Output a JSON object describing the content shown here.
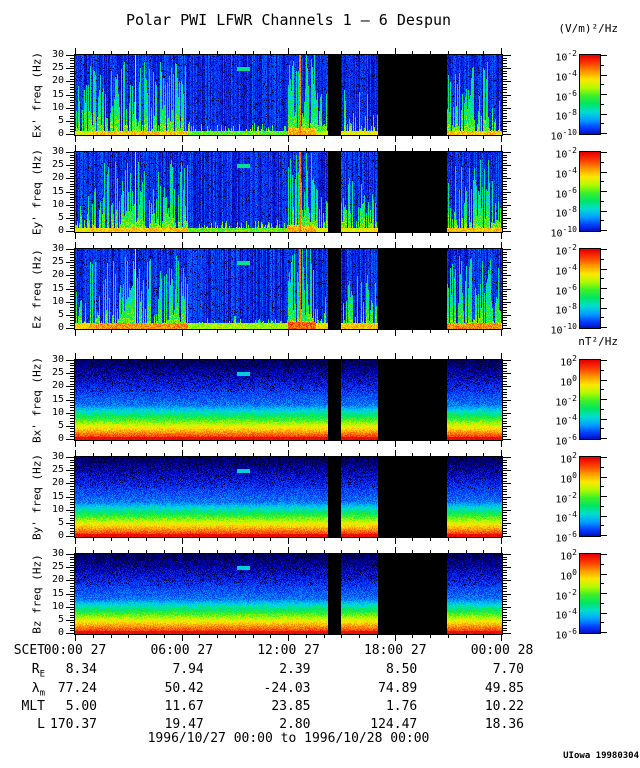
{
  "title": "Polar PWI LFWR Channels 1 – 6 Despun",
  "credit": "UIowa 19980304",
  "colorbar_units": [
    "(V/m)²/Hz",
    "nT²/Hz"
  ],
  "chart_data": {
    "type": "heatmap",
    "title": "Polar PWI LFWR Channels 1 – 6 Despun",
    "time_range": "1996/10/27 00:00 to 1996/10/28 00:00",
    "x_axis": {
      "label": "SCET",
      "tick_labels": [
        "00:00 27",
        "06:00 27",
        "12:00 27",
        "18:00 27",
        "00:00 28"
      ],
      "hours": [
        0,
        6,
        12,
        18,
        24
      ],
      "minor_tick_hours": 1
    },
    "y_axis": {
      "unit": "Hz",
      "min": 0,
      "max": 30,
      "tick_values": [
        0,
        5,
        10,
        15,
        20,
        25,
        30
      ]
    },
    "colorbar_base": "10",
    "colormap": [
      "#00002a",
      "#0000aa",
      "#003cff",
      "#00a0ff",
      "#00dcd2",
      "#00e664",
      "#3cf028",
      "#b4fa00",
      "#ffe600",
      "#ff9600",
      "#ff3c00",
      "#e60000"
    ],
    "panels": [
      {
        "key": "ex",
        "label": "Ex' freq (Hz)",
        "field": "E",
        "colorbar_unit": "(V/m)²/Hz",
        "colorbar_exponents": [
          -2,
          -4,
          -6,
          -8,
          -10
        ]
      },
      {
        "key": "ey",
        "label": "Ey' freq (Hz)",
        "field": "E",
        "colorbar_unit": "(V/m)²/Hz",
        "colorbar_exponents": [
          -2,
          -4,
          -6,
          -8,
          -10
        ]
      },
      {
        "key": "ez",
        "label": "Ez freq (Hz)",
        "field": "E",
        "colorbar_unit": "(V/m)²/Hz",
        "colorbar_exponents": [
          -2,
          -4,
          -6,
          -8,
          -10
        ]
      },
      {
        "key": "bx",
        "label": "Bx' freq (Hz)",
        "field": "B",
        "colorbar_unit": "nT²/Hz",
        "colorbar_exponents": [
          2,
          0,
          -2,
          -4,
          -6
        ]
      },
      {
        "key": "by",
        "label": "By' freq (Hz)",
        "field": "B",
        "colorbar_unit": "nT²/Hz",
        "colorbar_exponents": [
          2,
          0,
          -2,
          -4,
          -6
        ]
      },
      {
        "key": "bz",
        "label": "Bz freq (Hz)",
        "field": "B",
        "colorbar_unit": "nT²/Hz",
        "colorbar_exponents": [
          2,
          0,
          -2,
          -4,
          -6
        ]
      }
    ],
    "data_gaps": [
      [
        0.592,
        0.623
      ],
      [
        0.709,
        0.873
      ]
    ],
    "features": {
      "cyan_dash": {
        "x": [
          0.379,
          0.41
        ],
        "freq_hz": 25
      },
      "yellow_line_x": 0.14,
      "orange_line_x": 0.527,
      "e_activity": [
        {
          "from": 0.0,
          "to": 0.035,
          "level": 0.55
        },
        {
          "from": 0.035,
          "to": 0.075,
          "level": 0.8
        },
        {
          "from": 0.075,
          "to": 0.265,
          "level": 0.85
        },
        {
          "from": 0.265,
          "to": 0.5,
          "level": 0.06
        },
        {
          "from": 0.5,
          "to": 0.565,
          "level": 1.0
        },
        {
          "from": 0.565,
          "to": 0.592,
          "level": 0.5
        },
        {
          "from": 0.623,
          "to": 0.709,
          "level": 0.6
        },
        {
          "from": 0.873,
          "to": 1.0,
          "level": 0.85
        }
      ]
    }
  },
  "ephemeris": {
    "rows": [
      {
        "label": "SCET",
        "sub": "",
        "type": "time",
        "values": [
          "00:00 27",
          "06:00 27",
          "12:00 27",
          "18:00 27",
          "00:00 28"
        ]
      },
      {
        "label": "R",
        "sub": "E",
        "type": "num",
        "values": [
          "8.34",
          "7.94",
          "2.39",
          "8.50",
          "7.70"
        ]
      },
      {
        "label": "λ",
        "sub": "m",
        "type": "num",
        "values": [
          "77.24",
          "50.42",
          "-24.03",
          "74.89",
          "49.85"
        ]
      },
      {
        "label": "MLT",
        "sub": "",
        "type": "num",
        "values": [
          "5.00",
          "11.67",
          "23.85",
          "1.76",
          "10.22"
        ]
      },
      {
        "label": "L",
        "sub": "",
        "type": "num",
        "values": [
          "170.37",
          "19.47",
          "2.80",
          "124.47",
          "18.36"
        ]
      }
    ]
  }
}
